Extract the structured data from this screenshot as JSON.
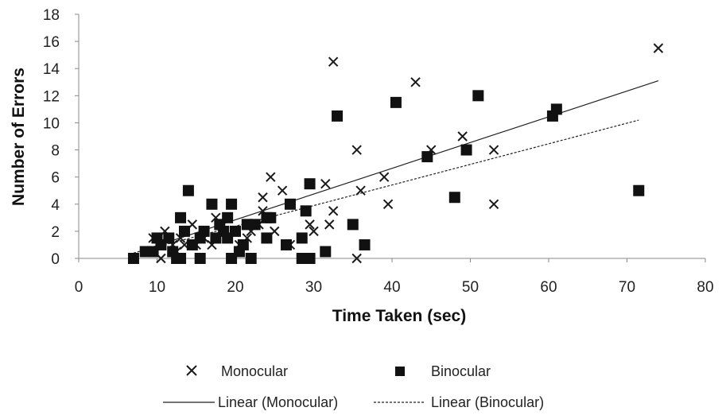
{
  "chart_data": {
    "type": "scatter",
    "title": "",
    "xlabel": "Time Taken (sec)",
    "ylabel": "Number of Errors",
    "xlim": [
      0,
      80
    ],
    "ylim": [
      0,
      18
    ],
    "xticks": [
      "0",
      "10",
      "20",
      "30",
      "40",
      "50",
      "60",
      "70",
      "80"
    ],
    "yticks": [
      "0",
      "2",
      "4",
      "6",
      "8",
      "10",
      "12",
      "14",
      "16",
      "18"
    ],
    "grid": false,
    "legend_position": "bottom",
    "series": [
      {
        "name": "Monocular",
        "marker": "x",
        "color": "#1a1a1a",
        "points": [
          [
            9.5,
            1.5
          ],
          [
            10.5,
            0
          ],
          [
            11,
            2
          ],
          [
            12,
            1
          ],
          [
            12.5,
            0.5
          ],
          [
            13,
            1.5
          ],
          [
            13.5,
            1
          ],
          [
            14.5,
            2.5
          ],
          [
            15,
            1
          ],
          [
            16,
            1.5
          ],
          [
            17,
            1
          ],
          [
            17.5,
            3
          ],
          [
            18,
            2
          ],
          [
            19,
            1.5
          ],
          [
            20,
            2
          ],
          [
            20.5,
            1
          ],
          [
            21.5,
            1.5
          ],
          [
            22,
            2
          ],
          [
            23,
            2.5
          ],
          [
            23.5,
            4.5
          ],
          [
            23.5,
            3.5
          ],
          [
            24.5,
            6
          ],
          [
            25,
            2
          ],
          [
            26,
            5
          ],
          [
            27,
            1
          ],
          [
            29.5,
            2.5
          ],
          [
            30,
            2
          ],
          [
            31.5,
            5.5
          ],
          [
            32,
            2.5
          ],
          [
            32.5,
            3.5
          ],
          [
            32.5,
            14.5
          ],
          [
            35.5,
            8
          ],
          [
            35.5,
            0
          ],
          [
            36,
            5
          ],
          [
            39,
            6
          ],
          [
            39.5,
            4
          ],
          [
            43,
            13
          ],
          [
            45,
            8
          ],
          [
            49,
            9
          ],
          [
            53,
            8
          ],
          [
            53,
            4
          ],
          [
            74,
            15.5
          ]
        ]
      },
      {
        "name": "Binocular",
        "marker": "square",
        "color": "#111111",
        "points": [
          [
            7,
            0
          ],
          [
            8.5,
            0.5
          ],
          [
            9.5,
            0.5
          ],
          [
            10,
            1.5
          ],
          [
            10.5,
            1
          ],
          [
            11.5,
            1.5
          ],
          [
            12,
            0.5
          ],
          [
            12.5,
            0
          ],
          [
            13,
            0
          ],
          [
            13,
            3
          ],
          [
            13.5,
            2
          ],
          [
            14,
            5
          ],
          [
            14.5,
            1
          ],
          [
            15.5,
            0
          ],
          [
            15.5,
            1.5
          ],
          [
            16,
            2
          ],
          [
            17,
            4
          ],
          [
            17.5,
            1.5
          ],
          [
            18,
            2.5
          ],
          [
            18.5,
            2
          ],
          [
            19,
            3
          ],
          [
            19,
            1.5
          ],
          [
            19.5,
            0
          ],
          [
            19.5,
            4
          ],
          [
            20,
            2
          ],
          [
            20.5,
            0.5
          ],
          [
            21,
            1
          ],
          [
            21.5,
            2.5
          ],
          [
            22,
            0
          ],
          [
            22.5,
            2.5
          ],
          [
            24,
            3
          ],
          [
            24,
            1.5
          ],
          [
            24.5,
            3
          ],
          [
            26.5,
            1
          ],
          [
            27,
            4
          ],
          [
            28.5,
            1.5
          ],
          [
            29,
            3.5
          ],
          [
            28.5,
            0
          ],
          [
            29.5,
            5.5
          ],
          [
            29.5,
            0
          ],
          [
            31.5,
            0.5
          ],
          [
            33,
            10.5
          ],
          [
            35,
            2.5
          ],
          [
            36.5,
            1
          ],
          [
            40.5,
            11.5
          ],
          [
            44.5,
            7.5
          ],
          [
            48,
            4.5
          ],
          [
            49.5,
            8
          ],
          [
            51,
            12
          ],
          [
            60.5,
            10.5
          ],
          [
            61,
            11
          ],
          [
            71.5,
            5
          ]
        ]
      }
    ],
    "trendlines": [
      {
        "name": "Linear (Monocular)",
        "style": "solid",
        "x": [
          9.5,
          74
        ],
        "y": [
          0.85,
          13.1
        ]
      },
      {
        "name": "Linear (Binocular)",
        "style": "dashed",
        "x": [
          7,
          71.5
        ],
        "y": [
          0.4,
          10.2
        ]
      }
    ]
  }
}
